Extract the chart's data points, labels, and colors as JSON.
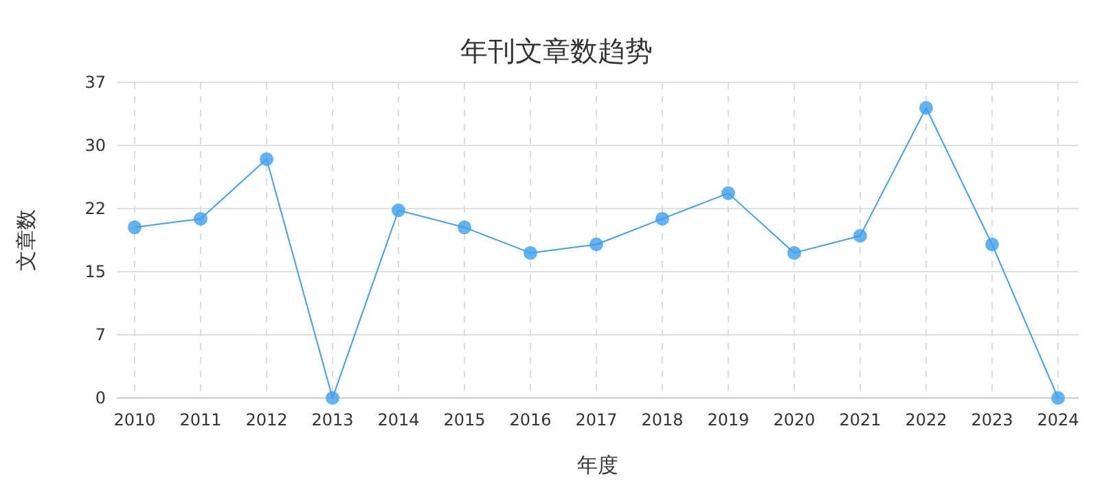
{
  "chart_data": {
    "type": "line",
    "title": "年刊文章数趋势",
    "xlabel": "年度",
    "ylabel": "文章数",
    "categories": [
      "2010",
      "2011",
      "2012",
      "2013",
      "2014",
      "2015",
      "2016",
      "2017",
      "2018",
      "2019",
      "2020",
      "2021",
      "2022",
      "2023",
      "2024"
    ],
    "series": [
      {
        "color": "#3c9ff0",
        "values": [
          20,
          21,
          28,
          0,
          22,
          20,
          17,
          18,
          21,
          24,
          17,
          19,
          34,
          18,
          0
        ]
      }
    ],
    "ylim": [
      0,
      37
    ],
    "yticks": [
      0,
      {
        "value": 7.4,
        "label": "7"
      },
      {
        "value": 14.8,
        "label": "15"
      },
      {
        "value": 22.2,
        "label": "22"
      },
      {
        "value": 29.6,
        "label": "30"
      },
      37
    ],
    "grid": true,
    "marker": "circle",
    "line_style": "solid"
  }
}
